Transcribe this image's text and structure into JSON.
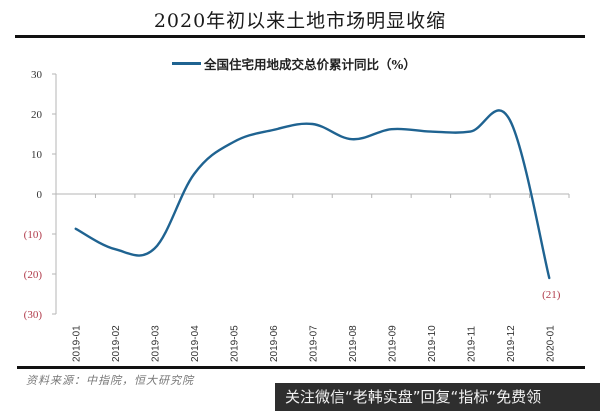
{
  "header": {
    "title": "2020年初以来土地市场明显收缩"
  },
  "legend": {
    "label": "全国住宅用地成交总价累计同比（%）",
    "color": "#1f6391"
  },
  "footer": {
    "source": "资料来源：中指院，恒大研究院",
    "watermark": "关注微信“老韩实盘”回复“指标”免费领"
  },
  "chart_data": {
    "type": "line",
    "title": "2020年初以来土地市场明显收缩",
    "xlabel": "",
    "ylabel": "",
    "categories": [
      "2019-01",
      "2019-02",
      "2019-03",
      "2019-04",
      "2019-05",
      "2019-06",
      "2019-07",
      "2019-08",
      "2019-09",
      "2019-10",
      "2019-11",
      "2019-12",
      "2020-01"
    ],
    "series": [
      {
        "name": "全国住宅用地成交总价累计同比（%）",
        "color": "#1f6391",
        "values": [
          -8.7,
          -13.8,
          -13.6,
          5.0,
          13.0,
          16.0,
          17.5,
          13.7,
          16.2,
          15.6,
          15.6,
          18.5,
          -21.0
        ]
      }
    ],
    "ylim": [
      -30,
      30
    ],
    "yticks": [
      30,
      20,
      10,
      0,
      -10,
      -20,
      -30
    ],
    "ytick_labels": [
      "30",
      "20",
      "10",
      "0",
      "(10)",
      "(20)",
      "(30)"
    ],
    "negative_label_color": "#b03a4a",
    "annotations": [
      {
        "category": "2020-01",
        "text": "(21)",
        "color": "#b03a4a"
      }
    ],
    "grid": false,
    "legend_position": "top"
  }
}
